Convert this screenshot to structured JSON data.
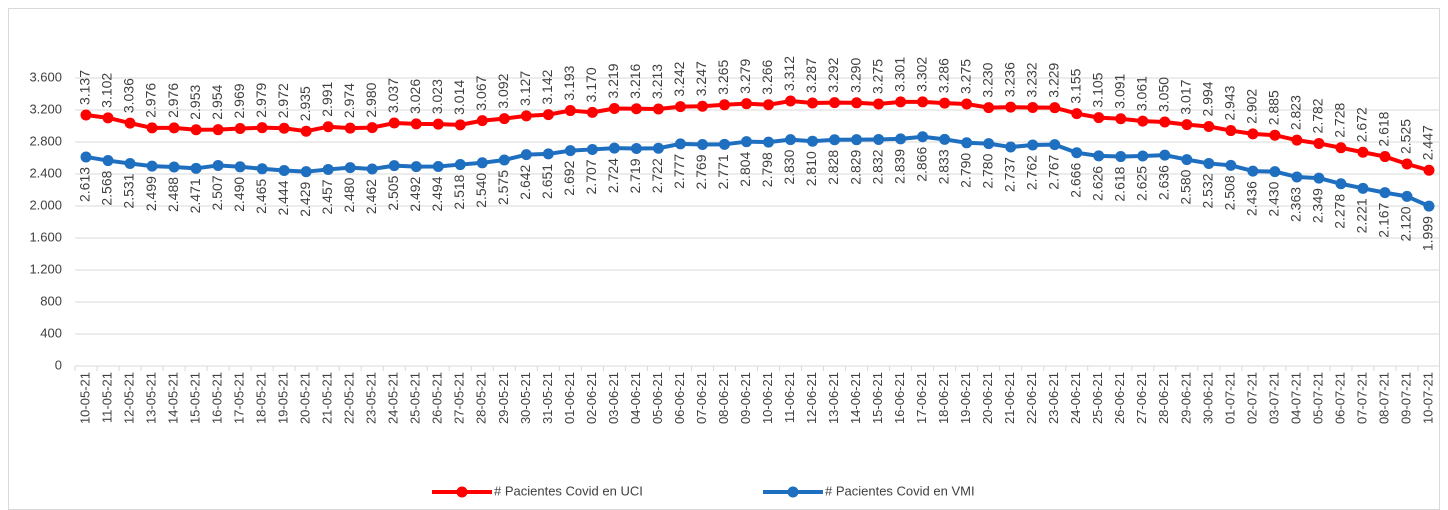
{
  "chart_data": {
    "type": "line",
    "categories": [
      "10-05-21",
      "11-05-21",
      "12-05-21",
      "13-05-21",
      "14-05-21",
      "15-05-21",
      "16-05-21",
      "17-05-21",
      "18-05-21",
      "19-05-21",
      "20-05-21",
      "21-05-21",
      "22-05-21",
      "23-05-21",
      "24-05-21",
      "25-05-21",
      "26-05-21",
      "27-05-21",
      "28-05-21",
      "29-05-21",
      "30-05-21",
      "31-05-21",
      "01-06-21",
      "02-06-21",
      "03-06-21",
      "04-06-21",
      "05-06-21",
      "06-06-21",
      "07-06-21",
      "08-06-21",
      "09-06-21",
      "10-06-21",
      "11-06-21",
      "12-06-21",
      "13-06-21",
      "14-06-21",
      "15-06-21",
      "16-06-21",
      "17-06-21",
      "18-06-21",
      "19-06-21",
      "20-06-21",
      "21-06-21",
      "22-06-21",
      "23-06-21",
      "24-06-21",
      "25-06-21",
      "26-06-21",
      "27-06-21",
      "28-06-21",
      "29-06-21",
      "30-06-21",
      "01-07-21",
      "02-07-21",
      "03-07-21",
      "04-07-21",
      "05-07-21",
      "06-07-21",
      "07-07-21",
      "08-07-21",
      "09-07-21",
      "10-07-21"
    ],
    "series": [
      {
        "name": "# Pacientes Covid en UCI",
        "color": "#ff0000",
        "values": [
          3137,
          3102,
          3036,
          2976,
          2976,
          2953,
          2954,
          2969,
          2979,
          2972,
          2935,
          2991,
          2974,
          2980,
          3037,
          3026,
          3023,
          3014,
          3067,
          3092,
          3127,
          3142,
          3193,
          3170,
          3219,
          3216,
          3213,
          3242,
          3247,
          3265,
          3279,
          3266,
          3312,
          3287,
          3292,
          3290,
          3275,
          3301,
          3302,
          3286,
          3275,
          3230,
          3236,
          3232,
          3229,
          3155,
          3105,
          3091,
          3061,
          3050,
          3017,
          2994,
          2943,
          2902,
          2885,
          2823,
          2782,
          2728,
          2672,
          2618,
          2525,
          2447
        ],
        "value_labels": [
          "3.137",
          "3.102",
          "3.036",
          "2.976",
          "2.976",
          "2.953",
          "2.954",
          "2.969",
          "2.979",
          "2.972",
          "2.935",
          "2.991",
          "2.974",
          "2.980",
          "3.037",
          "3.026",
          "3.023",
          "3.014",
          "3.067",
          "3.092",
          "3.127",
          "3.142",
          "3.193",
          "3.170",
          "3.219",
          "3.216",
          "3.213",
          "3.242",
          "3.247",
          "3.265",
          "3.279",
          "3.266",
          "3.312",
          "3.287",
          "3.292",
          "3.290",
          "3.275",
          "3.301",
          "3.302",
          "3.286",
          "3.275",
          "3.230",
          "3.236",
          "3.232",
          "3.229",
          "3.155",
          "3.105",
          "3.091",
          "3.061",
          "3.050",
          "3.017",
          "2.994",
          "2.943",
          "2.902",
          "2.885",
          "2.823",
          "2.782",
          "2.728",
          "2.672",
          "2.618",
          "2.525",
          "2.447"
        ]
      },
      {
        "name": "# Pacientes Covid en VMI",
        "color": "#1f6fc0",
        "values": [
          2613,
          2568,
          2531,
          2499,
          2488,
          2471,
          2507,
          2490,
          2465,
          2444,
          2429,
          2457,
          2480,
          2462,
          2505,
          2492,
          2494,
          2518,
          2540,
          2575,
          2642,
          2651,
          2692,
          2707,
          2724,
          2719,
          2722,
          2777,
          2769,
          2771,
          2804,
          2798,
          2830,
          2810,
          2828,
          2829,
          2832,
          2839,
          2866,
          2833,
          2790,
          2780,
          2737,
          2762,
          2767,
          2666,
          2626,
          2618,
          2625,
          2636,
          2580,
          2532,
          2508,
          2436,
          2430,
          2363,
          2349,
          2278,
          2221,
          2167,
          2120,
          1999
        ],
        "value_labels": [
          "2.613",
          "2.568",
          "2.531",
          "2.499",
          "2.488",
          "2.471",
          "2.507",
          "2.490",
          "2.465",
          "2.444",
          "2.429",
          "2.457",
          "2.480",
          "2.462",
          "2.505",
          "2.492",
          "2.494",
          "2.518",
          "2.540",
          "2.575",
          "2.642",
          "2.651",
          "2.692",
          "2.707",
          "2.724",
          "2.719",
          "2.722",
          "2.777",
          "2.769",
          "2.771",
          "2.804",
          "2.798",
          "2.830",
          "2.810",
          "2.828",
          "2.829",
          "2.832",
          "2.839",
          "2.866",
          "2.833",
          "2.790",
          "2.780",
          "2.737",
          "2.762",
          "2.767",
          "2.666",
          "2.626",
          "2.618",
          "2.625",
          "2.636",
          "2.580",
          "2.532",
          "2.508",
          "2.436",
          "2.430",
          "2.363",
          "2.349",
          "2.278",
          "2.221",
          "2.167",
          "2.120",
          "1.999"
        ]
      }
    ],
    "ylim": [
      0,
      3600
    ],
    "yticks": [
      0,
      400,
      800,
      {
        "value": 1200,
        "label": "1.200"
      },
      {
        "value": 1600,
        "label": "1.600"
      },
      {
        "value": 2000,
        "label": "2.000"
      },
      {
        "value": 2400,
        "label": "2.400"
      },
      {
        "value": 2800,
        "label": "2.800"
      },
      {
        "value": 3200,
        "label": "3.200"
      },
      {
        "value": 3600,
        "label": "3.600"
      }
    ],
    "grid": true,
    "legend": "bottom"
  }
}
